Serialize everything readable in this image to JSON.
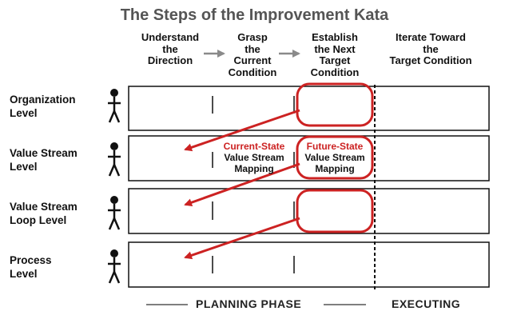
{
  "title": "The Steps of the Improvement Kata",
  "steps": [
    "Understand\nthe\nDirection",
    "Grasp\nthe\nCurrent\nCondition",
    "Establish\nthe Next\nTarget\nCondition",
    "Iterate Toward\nthe\nTarget Condition"
  ],
  "levels": [
    "Organization\nLevel",
    "Value Stream\nLevel",
    "Value Stream\nLoop Level",
    "Process\nLevel"
  ],
  "mapping": {
    "current_title": "Current-State",
    "current_body": "Value Stream\nMapping",
    "future_title": "Future-State",
    "future_body": "Value Stream\nMapping"
  },
  "phases": {
    "planning": "PLANNING PHASE",
    "executing": "EXECUTING"
  },
  "colors": {
    "accent": "#cc2222",
    "arrow_gray": "#8a8a8a",
    "title_gray": "#555555"
  }
}
